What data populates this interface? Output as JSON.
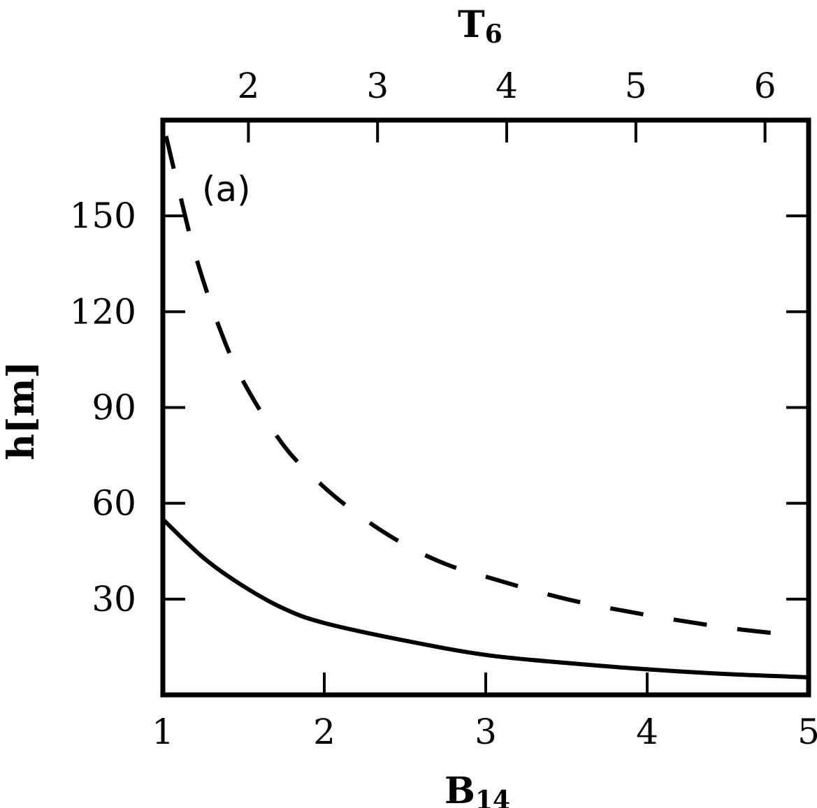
{
  "chart_data": {
    "type": "line",
    "panel_label": "(a)",
    "x_bottom": {
      "label_main": "B",
      "label_sub": "14",
      "range": [
        1,
        5
      ],
      "ticks": [
        1,
        2,
        3,
        4,
        5
      ]
    },
    "x_top": {
      "label_main": "T",
      "label_sub": "6",
      "ticks": [
        2,
        3,
        4,
        5,
        6
      ],
      "tick_positions_in_B14": [
        1.53,
        2.33,
        3.13,
        3.93,
        4.73
      ]
    },
    "y": {
      "label": "h[m]",
      "range": [
        0,
        180
      ],
      "ticks": [
        30,
        60,
        90,
        120,
        150
      ]
    },
    "grid": false,
    "series": [
      {
        "style": "solid",
        "x": [
          1.0,
          1.25,
          1.5,
          1.75,
          2.0,
          2.5,
          3.0,
          3.5,
          4.0,
          4.5,
          5.0
        ],
        "y": [
          55,
          43,
          34,
          27,
          22.5,
          17,
          12.5,
          10,
          8,
          6.5,
          5.5
        ]
      },
      {
        "style": "dashed",
        "x": [
          1.02,
          1.1,
          1.2,
          1.35,
          1.5,
          1.75,
          2.0,
          2.25,
          2.5,
          2.75,
          3.0,
          3.5,
          4.0,
          4.5,
          4.85
        ],
        "y": [
          175,
          158,
          138,
          115,
          98,
          78,
          65,
          55,
          47,
          41,
          37,
          30,
          25,
          21,
          19
        ]
      }
    ]
  }
}
